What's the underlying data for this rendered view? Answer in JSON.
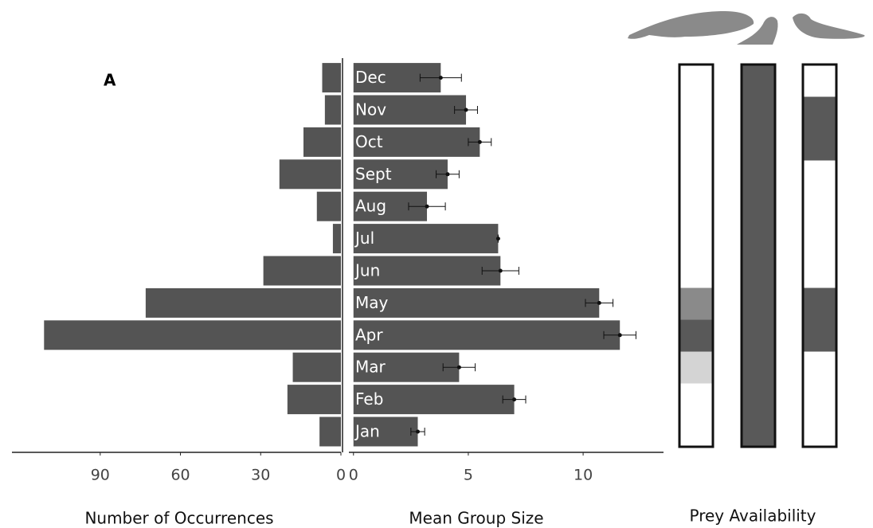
{
  "chart_data": [
    {
      "type": "bar",
      "orientation": "horizontal",
      "x_reversed": true,
      "panel_label": "A",
      "xlabel": "Number of Occurrences",
      "values": [
        8,
        20,
        18,
        111,
        73,
        29,
        3,
        9,
        23,
        14,
        6,
        7
      ],
      "xlim": [
        0,
        123
      ],
      "xticks": [
        0,
        30,
        60,
        90
      ],
      "color": "#545454"
    },
    {
      "type": "bar",
      "orientation": "horizontal",
      "xlabel": "Mean Group Size",
      "categories": [
        "Jan",
        "Feb",
        "Mar",
        "Apr",
        "May",
        "Jun",
        "Jul",
        "Aug",
        "Sept",
        "Oct",
        "Nov",
        "Dec"
      ],
      "values": [
        2.8,
        7.0,
        4.6,
        11.6,
        10.7,
        6.4,
        6.3,
        3.2,
        4.1,
        5.5,
        4.9,
        3.8
      ],
      "errors": [
        0.3,
        0.5,
        0.7,
        0.7,
        0.6,
        0.8,
        0,
        0.8,
        0.5,
        0.5,
        0.5,
        0.9
      ],
      "xlim": [
        -0.2,
        13.5
      ],
      "xticks": [
        0,
        5,
        10
      ],
      "color": "#545454"
    },
    {
      "type": "strip",
      "xlabel": "Prey Availability",
      "columns": [
        {
          "cells": [
            "#ffffff",
            "#ffffff",
            "#d4d4d4",
            "#595959",
            "#8a8a8a",
            "#ffffff",
            "#ffffff",
            "#ffffff",
            "#ffffff",
            "#ffffff",
            "#ffffff",
            "#ffffff"
          ]
        },
        {
          "cells": [
            "#595959",
            "#595959",
            "#595959",
            "#595959",
            "#595959",
            "#595959",
            "#595959",
            "#595959",
            "#595959",
            "#595959",
            "#595959",
            "#595959"
          ]
        },
        {
          "cells": [
            "#ffffff",
            "#ffffff",
            "#ffffff",
            "#595959",
            "#595959",
            "#ffffff",
            "#ffffff",
            "#ffffff",
            "#ffffff",
            "#595959",
            "#595959",
            "#ffffff"
          ]
        }
      ]
    }
  ]
}
